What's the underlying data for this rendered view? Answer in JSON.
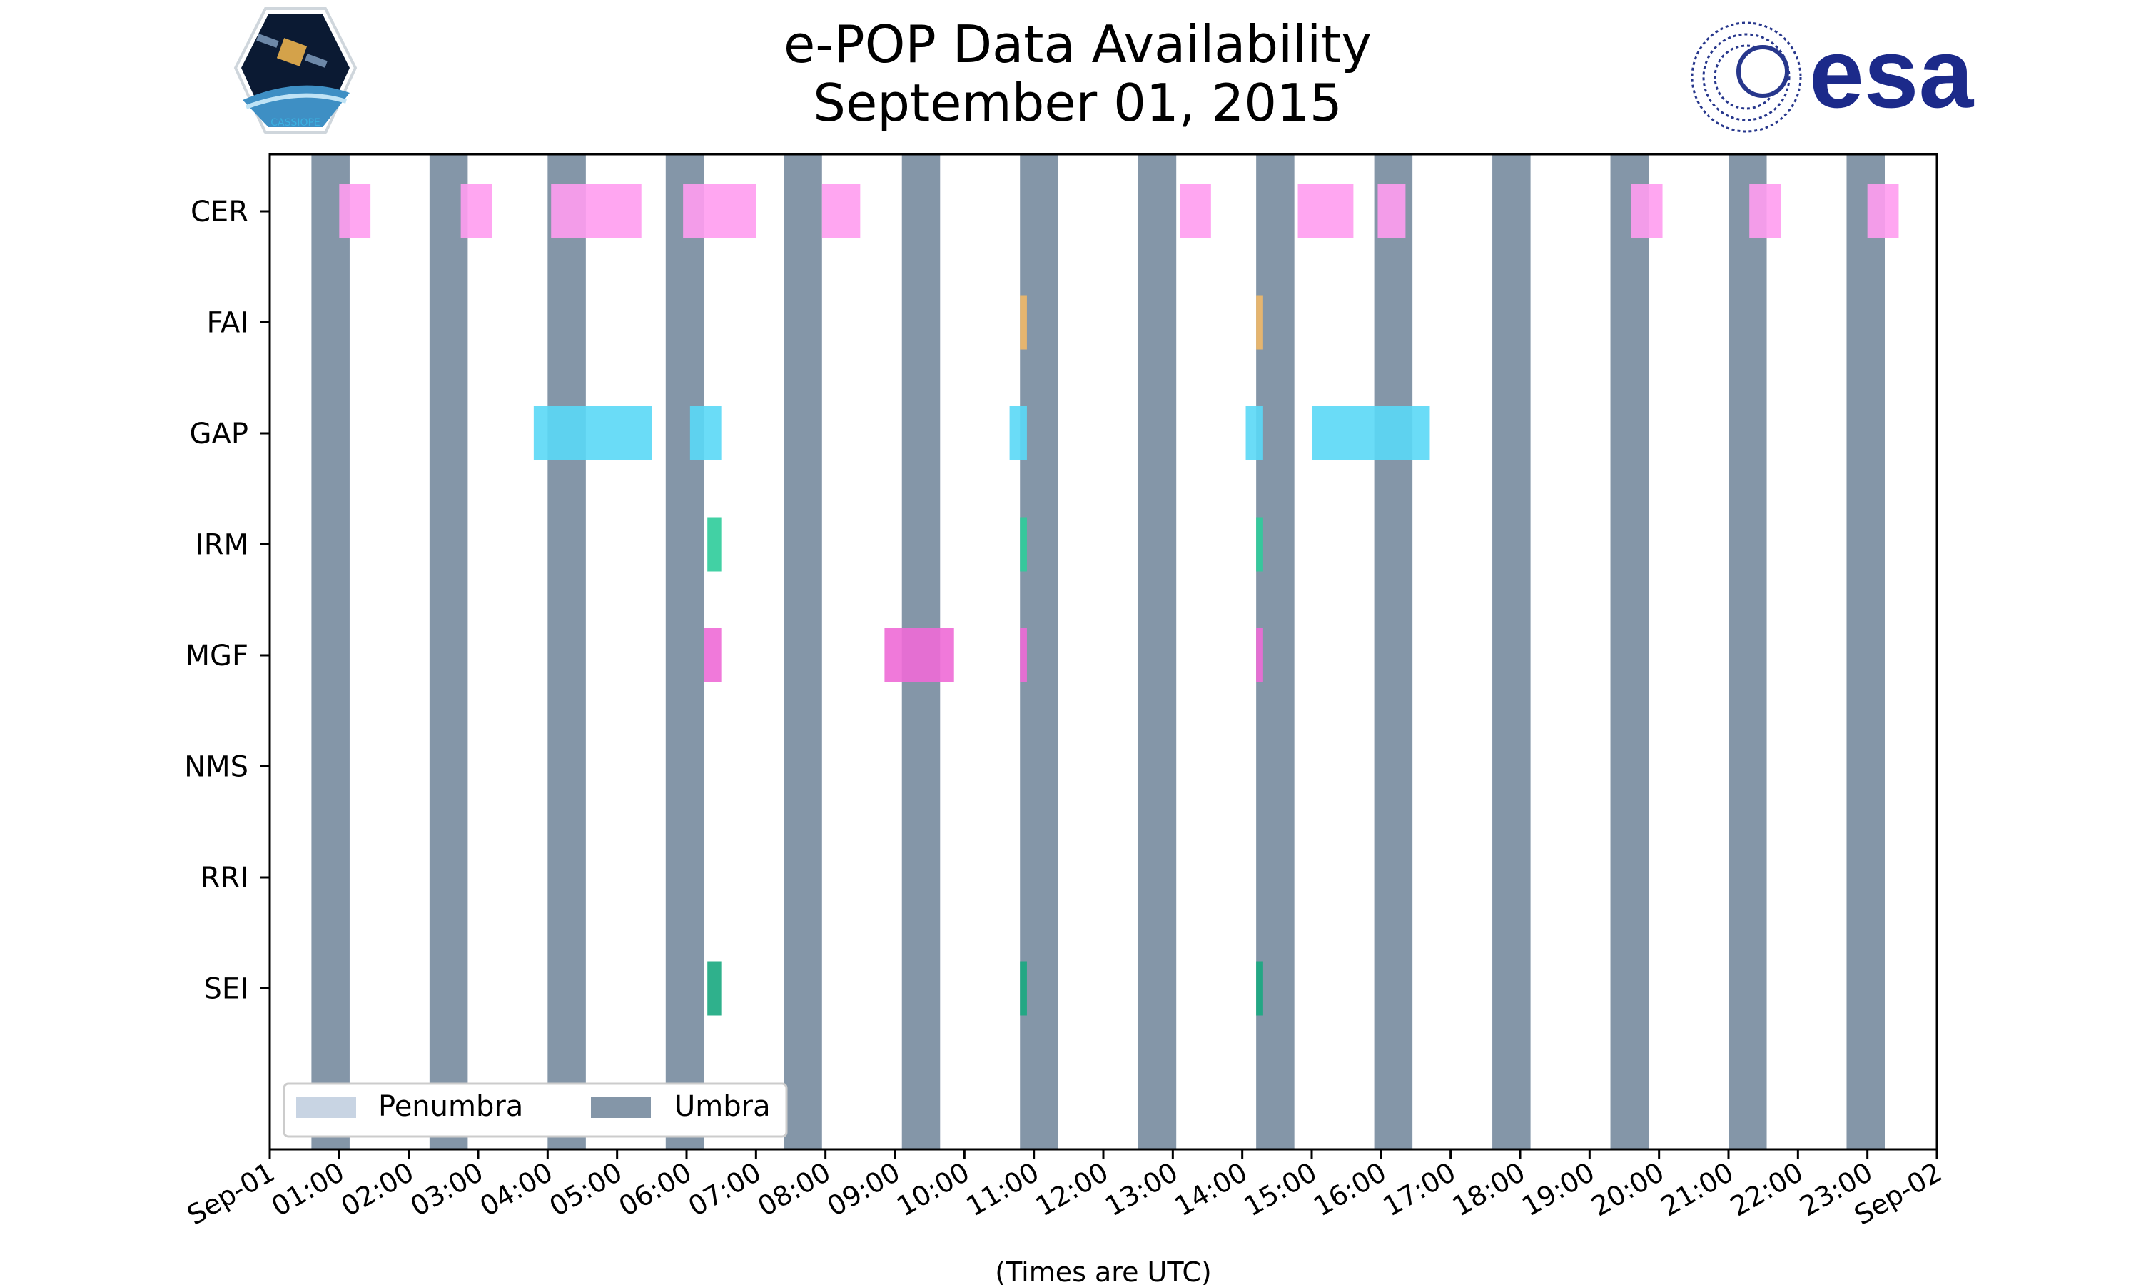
{
  "chart_data": {
    "type": "timeline",
    "title": "e-POP Data Availability",
    "subtitle": "September 01, 2015",
    "xlabel": "(Times are UTC)",
    "xlim_hours": [
      0,
      24
    ],
    "x_tick_labels": [
      "Sep-01",
      "01:00",
      "02:00",
      "03:00",
      "04:00",
      "05:00",
      "06:00",
      "07:00",
      "08:00",
      "09:00",
      "10:00",
      "11:00",
      "12:00",
      "13:00",
      "14:00",
      "15:00",
      "16:00",
      "17:00",
      "18:00",
      "19:00",
      "20:00",
      "21:00",
      "22:00",
      "23:00",
      "Sep-02"
    ],
    "instruments": [
      "CER",
      "FAI",
      "GAP",
      "IRM",
      "MGF",
      "NMS",
      "RRI",
      "SEI"
    ],
    "legend": [
      {
        "label": "Penumbra",
        "color": "#c8d4e3"
      },
      {
        "label": "Umbra",
        "color": "#8496a8"
      }
    ],
    "legend_position": "lower-left",
    "umbra_intervals_hours": [
      [
        0.6,
        1.15
      ],
      [
        2.3,
        2.85
      ],
      [
        4.0,
        4.55
      ],
      [
        5.7,
        6.25
      ],
      [
        7.4,
        7.95
      ],
      [
        9.1,
        9.65
      ],
      [
        10.8,
        11.35
      ],
      [
        12.5,
        13.05
      ],
      [
        14.2,
        14.75
      ],
      [
        15.9,
        16.45
      ],
      [
        17.6,
        18.15
      ],
      [
        19.3,
        19.85
      ],
      [
        21.0,
        21.55
      ],
      [
        22.7,
        23.25
      ]
    ],
    "series": [
      {
        "name": "CER",
        "color": "#ff9cf0",
        "intervals_hours": [
          [
            1.0,
            1.45
          ],
          [
            2.75,
            3.2
          ],
          [
            4.05,
            5.35
          ],
          [
            5.95,
            7.0
          ],
          [
            7.95,
            8.5
          ],
          [
            13.1,
            13.55
          ],
          [
            14.8,
            15.6
          ],
          [
            15.95,
            16.35
          ],
          [
            19.6,
            20.05
          ],
          [
            21.3,
            21.75
          ],
          [
            23.0,
            23.45
          ]
        ]
      },
      {
        "name": "FAI",
        "color": "#f0b868",
        "intervals_hours": [
          [
            10.8,
            10.9
          ],
          [
            14.2,
            14.3
          ]
        ]
      },
      {
        "name": "GAP",
        "color": "#5ad8f6",
        "intervals_hours": [
          [
            3.8,
            5.5
          ],
          [
            6.05,
            6.5
          ],
          [
            10.65,
            10.9
          ],
          [
            14.05,
            14.3
          ],
          [
            15.0,
            16.7
          ]
        ]
      },
      {
        "name": "IRM",
        "color": "#2ecc9a",
        "intervals_hours": [
          [
            6.3,
            6.5
          ],
          [
            10.8,
            10.9
          ],
          [
            14.2,
            14.3
          ]
        ]
      },
      {
        "name": "MGF",
        "color": "#ee6ad6",
        "intervals_hours": [
          [
            6.25,
            6.5
          ],
          [
            8.85,
            9.85
          ],
          [
            10.8,
            10.9
          ],
          [
            14.2,
            14.3
          ]
        ]
      },
      {
        "name": "NMS",
        "color": "#888888",
        "intervals_hours": []
      },
      {
        "name": "RRI",
        "color": "#888888",
        "intervals_hours": []
      },
      {
        "name": "SEI",
        "color": "#18a880",
        "intervals_hours": [
          [
            6.3,
            6.5
          ],
          [
            10.8,
            10.9
          ],
          [
            14.2,
            14.3
          ]
        ]
      }
    ]
  },
  "logos": {
    "left_caption": "CASSIOPE",
    "right_text": "esa"
  }
}
